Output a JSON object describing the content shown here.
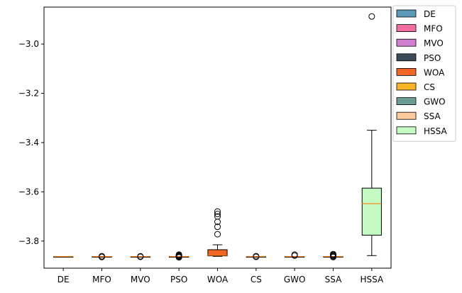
{
  "chart_data": {
    "type": "box",
    "title": "",
    "xlabel": "",
    "ylabel": "",
    "ylim": [
      -3.91,
      -2.85
    ],
    "y_ticks": [
      -3.8,
      -3.6,
      -3.4,
      -3.2,
      -3.0
    ],
    "y_tick_labels": [
      "−3.8",
      "−3.6",
      "−3.4",
      "−3.2",
      "−3.0"
    ],
    "grid": false,
    "legend_position": "outside-right-top",
    "median_color": "#ff7f0e",
    "categories": [
      "DE",
      "MFO",
      "MVO",
      "PSO",
      "WOA",
      "CS",
      "GWO",
      "SSA",
      "HSSA"
    ],
    "series": [
      {
        "name": "DE",
        "color": "#5a9ab8",
        "whislo": -3.8628,
        "q1": -3.8628,
        "med": -3.8628,
        "q3": -3.8627,
        "whishi": -3.8627,
        "fliers": []
      },
      {
        "name": "MFO",
        "color": "#f06fa0",
        "whislo": -3.8628,
        "q1": -3.8628,
        "med": -3.8628,
        "q3": -3.8627,
        "whishi": -3.8627,
        "fliers": [
          -3.8615,
          -3.8648
        ]
      },
      {
        "name": "MVO",
        "color": "#cf80d0",
        "whislo": -3.8628,
        "q1": -3.8628,
        "med": -3.8628,
        "q3": -3.8627,
        "whishi": -3.8627,
        "fliers": [
          -3.8618,
          -3.864
        ]
      },
      {
        "name": "PSO",
        "color": "#3a4b55",
        "whislo": -3.8628,
        "q1": -3.8628,
        "med": -3.8628,
        "q3": -3.8627,
        "whishi": -3.8627,
        "fliers": [
          -3.855,
          -3.858,
          -3.86,
          -3.8615,
          -3.864,
          -3.866
        ]
      },
      {
        "name": "WOA",
        "color": "#f26522",
        "whislo": -3.862,
        "q1": -3.86,
        "med": -3.858,
        "q3": -3.835,
        "whishi": -3.815,
        "fliers": [
          -3.772,
          -3.742,
          -3.722,
          -3.7,
          -3.69,
          -3.68
        ]
      },
      {
        "name": "CS",
        "color": "#f8b628",
        "whislo": -3.8628,
        "q1": -3.8628,
        "med": -3.8628,
        "q3": -3.8627,
        "whishi": -3.8627,
        "fliers": [
          -3.8615,
          -3.864
        ]
      },
      {
        "name": "GWO",
        "color": "#6a9e95",
        "whislo": -3.8628,
        "q1": -3.8628,
        "med": -3.8628,
        "q3": -3.8627,
        "whishi": -3.8627,
        "fliers": [
          -3.855,
          -3.859
        ]
      },
      {
        "name": "SSA",
        "color": "#fbcb9a",
        "whislo": -3.8628,
        "q1": -3.8628,
        "med": -3.8628,
        "q3": -3.8627,
        "whishi": -3.8627,
        "fliers": [
          -3.853,
          -3.856,
          -3.859,
          -3.862,
          -3.865
        ]
      },
      {
        "name": "HSSA",
        "color": "#c3fbc3",
        "whislo": -3.859,
        "q1": -3.776,
        "med": -3.648,
        "q3": -3.585,
        "whishi": -3.35,
        "fliers": [
          -2.888
        ]
      }
    ]
  }
}
